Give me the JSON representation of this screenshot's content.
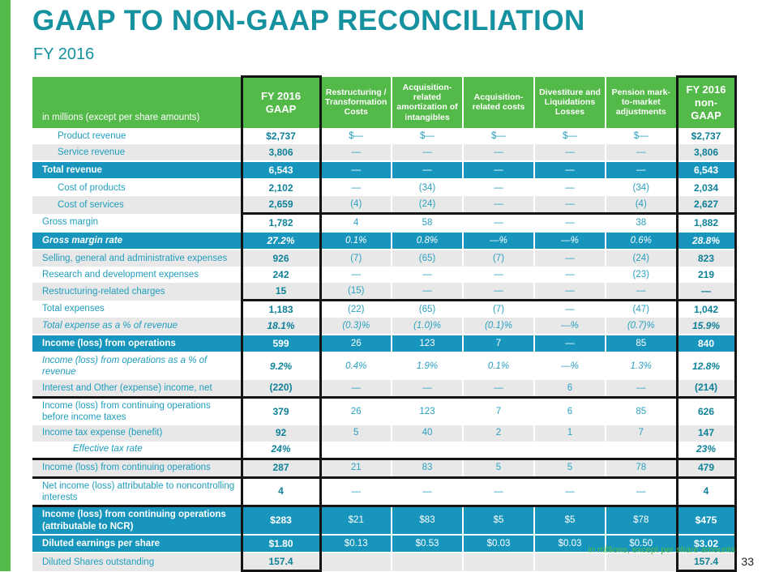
{
  "page": {
    "title": "GAAP TO NON-GAAP RECONCILIATION",
    "subtitle": "FY 2016",
    "footnote": "in millions, except per share amounts",
    "page_number": "33"
  },
  "colors": {
    "green": "#53b948",
    "blue": "#1795bd",
    "gray_row": "#e8e8e8",
    "teal_label": "#1f9dbd",
    "teal_value": "#0e8199",
    "teal_value_light": "#2aa1c0",
    "title_teal": "#16919f",
    "border_black": "#141414"
  },
  "table": {
    "corner_label": "in millions (except per share amounts)",
    "columns": [
      "FY 2016 GAAP",
      "Restructuring / Transformation Costs",
      "Acquisition-related amortization of intangibles",
      "Acquisition-related costs",
      "Divestiture and Liquidations Losses",
      "Pension mark-to-market adjustments",
      "FY 2016 non-GAAP"
    ],
    "rows": [
      {
        "label": "Product revenue",
        "indent": 1,
        "style": "w",
        "italic": false,
        "sect": "",
        "values": [
          "$2,737",
          "$—",
          "$—",
          "$—",
          "$—",
          "$—",
          "$2,737"
        ]
      },
      {
        "label": "Service revenue",
        "indent": 1,
        "style": "g",
        "italic": false,
        "sect": "",
        "values": [
          "3,806",
          "—",
          "—",
          "—",
          "—",
          "—",
          "3,806"
        ]
      },
      {
        "label": "Total revenue",
        "indent": 0,
        "style": "b",
        "italic": false,
        "sect": "",
        "values": [
          "6,543",
          "—",
          "—",
          "—",
          "—",
          "—",
          "6,543"
        ]
      },
      {
        "label": "Cost of products",
        "indent": 1,
        "style": "w",
        "italic": false,
        "sect": "",
        "values": [
          "2,102",
          "—",
          "(34)",
          "—",
          "—",
          "(34)",
          "2,034"
        ]
      },
      {
        "label": "Cost of services",
        "indent": 1,
        "style": "g",
        "italic": false,
        "sect": "",
        "values": [
          "2,659",
          "(4)",
          "(24)",
          "—",
          "—",
          "(4)",
          "2,627"
        ]
      },
      {
        "label": "Gross margin",
        "indent": 0,
        "style": "w",
        "italic": false,
        "sect": "v",
        "values": [
          "1,782",
          "4",
          "58",
          "—",
          "—",
          "38",
          "1,882"
        ]
      },
      {
        "label": "Gross margin rate",
        "indent": 0,
        "style": "b",
        "italic": true,
        "sect": "",
        "values": [
          "27.2%",
          "0.1%",
          "0.8%",
          "—%",
          "—%",
          "0.6%",
          "28.8%"
        ]
      },
      {
        "label": "Selling, general and administrative expenses",
        "indent": 0,
        "style": "g",
        "italic": false,
        "sect": "",
        "values": [
          "926",
          "(7)",
          "(65)",
          "(7)",
          "—",
          "(24)",
          "823"
        ]
      },
      {
        "label": "Research and development expenses",
        "indent": 0,
        "style": "w",
        "italic": false,
        "sect": "",
        "values": [
          "242",
          "—",
          "—",
          "—",
          "—",
          "(23)",
          "219"
        ]
      },
      {
        "label": "Restructuring-related charges",
        "indent": 0,
        "style": "g",
        "italic": false,
        "sect": "",
        "values": [
          "15",
          "(15)",
          "—",
          "—",
          "—",
          "—",
          "—"
        ]
      },
      {
        "label": "Total expenses",
        "indent": 0,
        "style": "w",
        "italic": false,
        "sect": "v",
        "values": [
          "1,183",
          "(22)",
          "(65)",
          "(7)",
          "—",
          "(47)",
          "1,042"
        ]
      },
      {
        "label": "Total expense as a % of revenue",
        "indent": 0,
        "style": "g",
        "italic": true,
        "sect": "",
        "values": [
          "18.1%",
          "(0.3)%",
          "(1.0)%",
          "(0.1)%",
          "—%",
          "(0.7)%",
          "15.9%"
        ]
      },
      {
        "label": "Income (loss) from operations",
        "indent": 0,
        "style": "b",
        "italic": false,
        "sect": "",
        "values": [
          "599",
          "26",
          "123",
          "7",
          "—",
          "85",
          "840"
        ]
      },
      {
        "label": "Income (loss) from operations as a % of revenue",
        "indent": 0,
        "style": "w",
        "italic": true,
        "sect": "",
        "values": [
          "9.2%",
          "0.4%",
          "1.9%",
          "0.1%",
          "—%",
          "1.3%",
          "12.8%"
        ]
      },
      {
        "label": "Interest and Other (expense) income, net",
        "indent": 0,
        "style": "g",
        "italic": false,
        "sect": "",
        "values": [
          "(220)",
          "—",
          "—",
          "—",
          "6",
          "—",
          "(214)"
        ]
      },
      {
        "label": "Income (loss) from continuing operations before income taxes",
        "indent": 0,
        "style": "w",
        "italic": false,
        "sect": "f",
        "values": [
          "379",
          "26",
          "123",
          "7",
          "6",
          "85",
          "626"
        ]
      },
      {
        "label": "Income tax expense (benefit)",
        "indent": 0,
        "style": "g",
        "italic": false,
        "sect": "",
        "values": [
          "92",
          "5",
          "40",
          "2",
          "1",
          "7",
          "147"
        ]
      },
      {
        "label": "Effective tax rate",
        "indent": 2,
        "style": "w",
        "italic": true,
        "sect": "",
        "values": [
          "24%",
          "",
          "",
          "",
          "",
          "",
          "23%"
        ]
      },
      {
        "label": "Income (loss) from continuing operations",
        "indent": 0,
        "style": "g",
        "italic": false,
        "sect": "f",
        "values": [
          "287",
          "21",
          "83",
          "5",
          "5",
          "78",
          "479"
        ]
      },
      {
        "label": "Net income (loss) attributable to noncontrolling interests",
        "indent": 0,
        "style": "w",
        "italic": false,
        "sect": "f",
        "values": [
          "4",
          "—",
          "—",
          "—",
          "—",
          "—",
          "4"
        ]
      },
      {
        "label": "Income (loss) from continuing operations (attributable to NCR)",
        "indent": 0,
        "style": "b",
        "italic": false,
        "sect": "f",
        "values": [
          "$283",
          "$21",
          "$83",
          "$5",
          "$5",
          "$78",
          "$475"
        ]
      },
      {
        "label": "Diluted earnings per share",
        "indent": 0,
        "style": "b",
        "italic": false,
        "sect": "",
        "values": [
          "$1.80",
          "$0.13",
          "$0.53",
          "$0.03",
          "$0.03",
          "$0.50",
          "$3.02"
        ]
      },
      {
        "label": "Diluted Shares outstanding",
        "indent": 0,
        "style": "g",
        "italic": false,
        "sect": "",
        "values": [
          "157.4",
          "",
          "",
          "",
          "",
          "",
          "157.4"
        ]
      }
    ]
  }
}
